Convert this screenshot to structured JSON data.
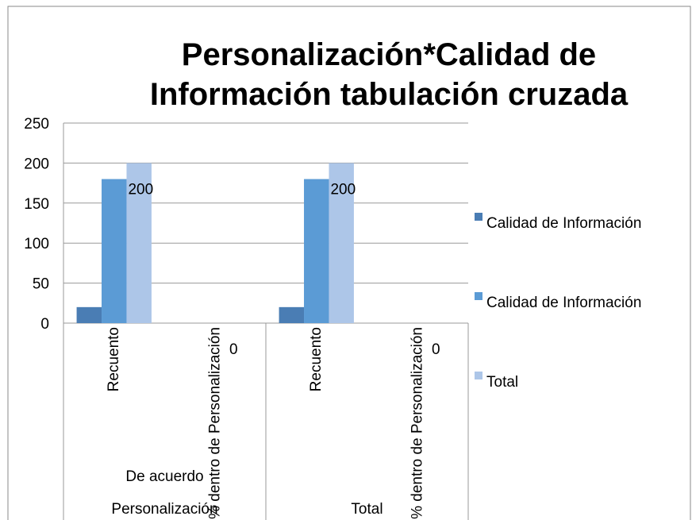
{
  "chart_data": {
    "type": "bar",
    "title": "Personalización*Calidad de Información tabulación cruzada",
    "categories": [
      "Recuento",
      "% dentro de Personalización",
      "Recuento",
      "% dentro de Personalización"
    ],
    "category_groups": [
      {
        "label": "De acuerdo",
        "span": 2
      },
      {
        "label": null,
        "span": 2
      }
    ],
    "outer_groups": [
      {
        "label": "Personalización",
        "span": 2
      },
      {
        "label": "Total",
        "span": 2
      }
    ],
    "series": [
      {
        "name": "Calidad de Información",
        "color": "#4a7db4",
        "values": [
          20,
          0,
          20,
          0
        ]
      },
      {
        "name": "Calidad de Información",
        "color": "#5b9bd5",
        "values": [
          180,
          0,
          180,
          0
        ]
      },
      {
        "name": "Total",
        "color": "#adc6e8",
        "values": [
          200,
          0,
          200,
          0
        ],
        "show_labels": true
      }
    ],
    "ylim": [
      0,
      250
    ],
    "yticks": [
      0,
      50,
      100,
      150,
      200,
      250
    ],
    "grid": true,
    "legend": "right"
  }
}
